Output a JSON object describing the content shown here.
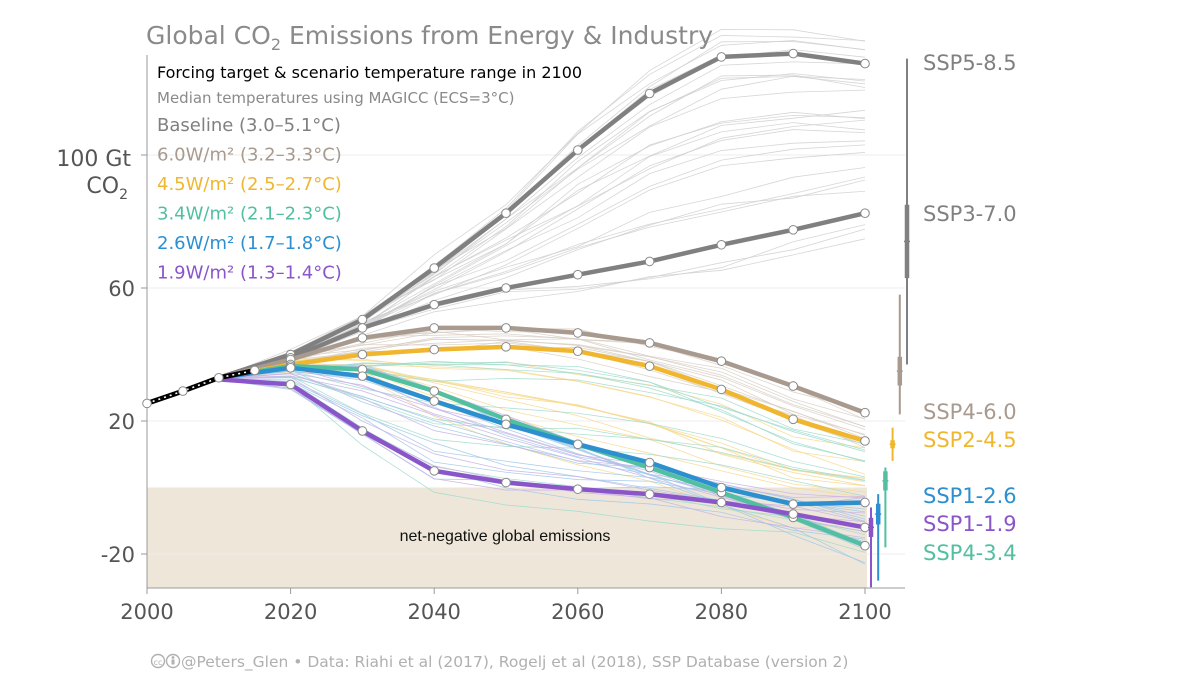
{
  "chart_data": {
    "type": "line",
    "title": "Global CO",
    "title_sub": "2",
    "title_rest": " Emissions from Energy & Industry",
    "ylabel_line1": "100 Gt",
    "ylabel_line2": "CO",
    "ylabel_sub": "2",
    "xlim": [
      2000,
      2106
    ],
    "ylim": [
      -30,
      132
    ],
    "x_ticks": [
      2000,
      2020,
      2040,
      2060,
      2080,
      2100
    ],
    "x_tick_labels": [
      "2000",
      "2020",
      "2040",
      "2060",
      "2080",
      "2100"
    ],
    "y_ticks": [
      -20,
      20,
      60,
      100
    ],
    "y_tick_labels": [
      "-20",
      "20",
      "60",
      ""
    ],
    "legend": {
      "heading": "Forcing target & scenario temperature range in 2100",
      "subheading": "Median temperatures using MAGICC (ECS=3°C)",
      "items": [
        {
          "label": "Baseline (3.0–5.1°C)",
          "color": "#808080"
        },
        {
          "label": "6.0W/m² (3.2–3.3°C)",
          "color": "#a89a8e"
        },
        {
          "label": "4.5W/m² (2.5–2.7°C)",
          "color": "#f0b62e"
        },
        {
          "label": "3.4W/m² (2.1–2.3°C)",
          "color": "#52c0a0"
        },
        {
          "label": "2.6W/m² (1.7–1.8°C)",
          "color": "#2b8fd0"
        },
        {
          "label": "1.9W/m² (1.3–1.4°C)",
          "color": "#8a55c9"
        }
      ]
    },
    "negative_region_label": "net-negative global emissions",
    "historical": {
      "x": [
        2000,
        2005,
        2010,
        2015
      ],
      "values": [
        25.3,
        29,
        33,
        35.2
      ],
      "color": "#000000"
    },
    "series": [
      {
        "name": "SSP5-8.5",
        "color": "#808080",
        "x": [
          2010,
          2020,
          2030,
          2040,
          2050,
          2060,
          2070,
          2080,
          2090,
          2100
        ],
        "values": [
          33,
          40,
          50.5,
          66,
          82.5,
          101.5,
          118.5,
          129.5,
          130.5,
          127.5
        ]
      },
      {
        "name": "SSP3-7.0",
        "color": "#808080",
        "x": [
          2010,
          2020,
          2030,
          2040,
          2050,
          2060,
          2070,
          2080,
          2090,
          2100
        ],
        "values": [
          33,
          39,
          48,
          55,
          60,
          64,
          68,
          73,
          77.5,
          82.5
        ]
      },
      {
        "name": "SSP4-6.0",
        "color": "#a89a8e",
        "x": [
          2010,
          2020,
          2030,
          2040,
          2050,
          2060,
          2070,
          2080,
          2090,
          2100
        ],
        "values": [
          33,
          38.5,
          45,
          48,
          48,
          46.5,
          43.5,
          38,
          30.5,
          22.5
        ]
      },
      {
        "name": "SSP2-4.5",
        "color": "#f0b62e",
        "x": [
          2010,
          2020,
          2030,
          2040,
          2050,
          2060,
          2070,
          2080,
          2090,
          2100
        ],
        "values": [
          33,
          37,
          40,
          41.5,
          42.3,
          41,
          36.5,
          29.5,
          20.5,
          14
        ]
      },
      {
        "name": "SSP4-3.4",
        "color": "#52c0a0",
        "x": [
          2010,
          2020,
          2030,
          2040,
          2050,
          2060,
          2070,
          2080,
          2090,
          2100
        ],
        "values": [
          33,
          36.5,
          35.5,
          29,
          20.5,
          13,
          6,
          -1.5,
          -9,
          -17.5
        ]
      },
      {
        "name": "SSP1-2.6",
        "color": "#2b8fd0",
        "x": [
          2010,
          2020,
          2030,
          2040,
          2050,
          2060,
          2070,
          2080,
          2090,
          2100
        ],
        "values": [
          33,
          36,
          33.5,
          26,
          19,
          13,
          7.5,
          0,
          -5,
          -4.5
        ]
      },
      {
        "name": "SSP1-1.9",
        "color": "#8a55c9",
        "x": [
          2010,
          2020,
          2030,
          2040,
          2050,
          2060,
          2070,
          2080,
          2090,
          2100
        ],
        "values": [
          32.5,
          31,
          17,
          5,
          1.5,
          -0.5,
          -2,
          -4.5,
          -8,
          -12
        ]
      }
    ],
    "temperature_bars": [
      {
        "color": "#8a55c9",
        "low": -30,
        "high": -6,
        "median": -12
      },
      {
        "color": "#2b8fd0",
        "low": -28,
        "high": -2,
        "median": -8
      },
      {
        "color": "#52c0a0",
        "low": -18,
        "high": 6,
        "median": 2
      },
      {
        "color": "#f0b62e",
        "low": 8,
        "high": 18,
        "median": 13
      },
      {
        "color": "#a89a8e",
        "low": 22,
        "high": 58,
        "median": 35
      },
      {
        "color": "#808080",
        "low": 37,
        "high": 129,
        "median": 74
      }
    ],
    "footer": "@Peters_Glen  •  Data: Riahi et al (2017), Rogelj et al (2018), SSP Database (version 2)"
  }
}
